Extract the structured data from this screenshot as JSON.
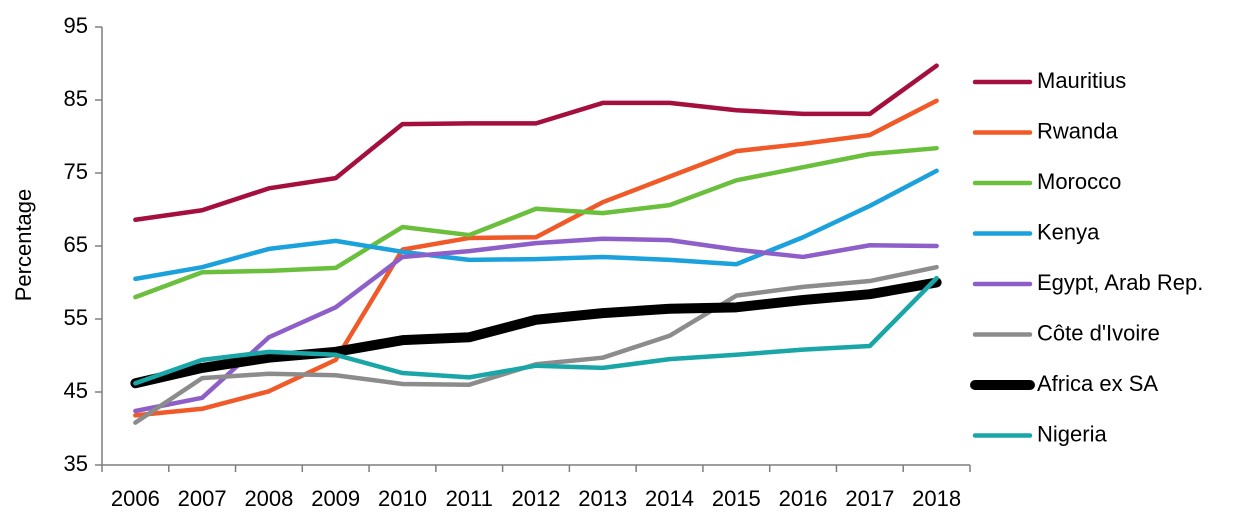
{
  "chart_data": {
    "type": "line",
    "y_label": "Percentage",
    "categories": [
      "2006",
      "2007",
      "2008",
      "2009",
      "2010",
      "2011",
      "2012",
      "2013",
      "2014",
      "2015",
      "2016",
      "2017",
      "2018"
    ],
    "ylim": [
      35,
      95
    ],
    "yticks": [
      35,
      45,
      55,
      65,
      75,
      85,
      95
    ],
    "grid": false,
    "legend": "right",
    "series": [
      {
        "name": "Mauritius",
        "color": "#a50f3d",
        "line_width": 4.5,
        "values": [
          68.6,
          69.9,
          72.9,
          74.3,
          81.7,
          81.8,
          81.8,
          84.6,
          84.6,
          83.6,
          83.1,
          83.1,
          89.7
        ]
      },
      {
        "name": "Rwanda",
        "color": "#f05a28",
        "line_width": 4.5,
        "values": [
          41.8,
          42.7,
          45.1,
          49.4,
          64.5,
          66.1,
          66.2,
          71.0,
          74.5,
          78.0,
          79.0,
          80.2,
          84.9
        ]
      },
      {
        "name": "Morocco",
        "color": "#6abf3c",
        "line_width": 4.5,
        "values": [
          58.0,
          61.4,
          61.6,
          62.0,
          67.6,
          66.5,
          70.1,
          69.5,
          70.6,
          74.0,
          75.8,
          77.6,
          78.4
        ]
      },
      {
        "name": "Kenya",
        "color": "#1ba1dc",
        "line_width": 4.5,
        "values": [
          60.5,
          62.1,
          64.6,
          65.7,
          64.2,
          63.1,
          63.2,
          63.5,
          63.1,
          62.5,
          66.2,
          70.5,
          75.3
        ]
      },
      {
        "name": "Egypt, Arab Rep.",
        "color": "#8e5fc8",
        "line_width": 4.5,
        "values": [
          42.4,
          44.2,
          52.5,
          56.6,
          63.5,
          64.3,
          65.4,
          66.0,
          65.8,
          64.5,
          63.5,
          65.1,
          65.0
        ]
      },
      {
        "name": "Côte d'Ivoire",
        "color": "#8c8c8c",
        "line_width": 4.5,
        "values": [
          40.8,
          46.9,
          47.5,
          47.3,
          46.1,
          46.0,
          48.8,
          49.7,
          52.7,
          58.2,
          59.4,
          60.2,
          62.1
        ]
      },
      {
        "name": "Africa ex SA",
        "color": "#000000",
        "line_width": 10,
        "values": [
          46.2,
          48.3,
          49.7,
          50.5,
          52.1,
          52.5,
          54.9,
          55.8,
          56.4,
          56.6,
          57.6,
          58.4,
          60.0
        ]
      },
      {
        "name": "Nigeria",
        "color": "#1aa6a6",
        "line_width": 4.5,
        "values": [
          46.2,
          49.4,
          50.5,
          50.1,
          47.6,
          47.0,
          48.6,
          48.3,
          49.5,
          50.1,
          50.8,
          51.3,
          60.6
        ]
      }
    ]
  }
}
